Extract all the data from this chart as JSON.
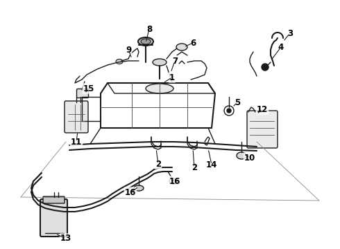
{
  "bg_color": "#ffffff",
  "line_color": "#1a1a1a",
  "label_color": "#000000",
  "label_fontsize": 8.5,
  "fig_width": 4.9,
  "fig_height": 3.6,
  "dpi": 100
}
